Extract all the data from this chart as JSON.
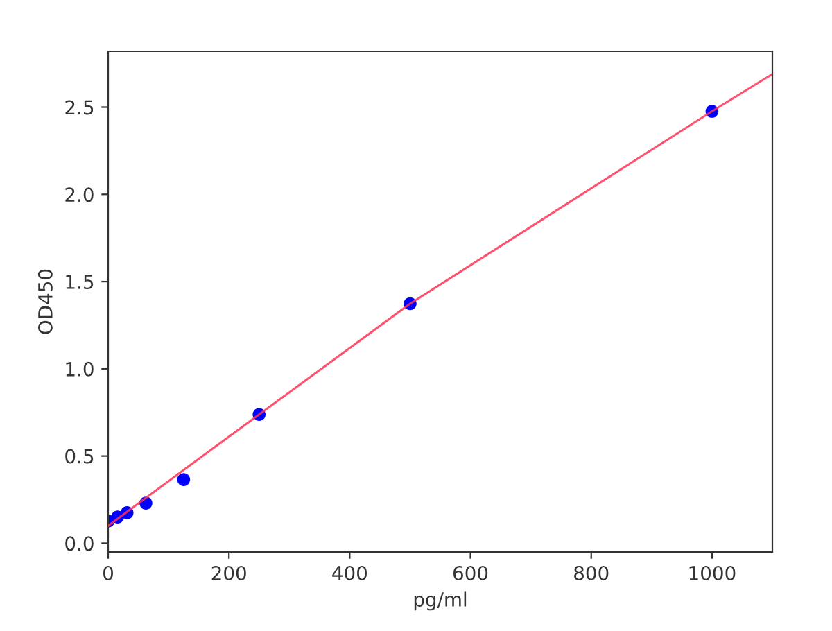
{
  "chart_data": {
    "type": "scatter",
    "xlabel": "pg/ml",
    "ylabel": "OD450",
    "series": [
      {
        "color": "#0000ff",
        "marker": "circle",
        "x": [
          0,
          15.6,
          31.25,
          62.5,
          125,
          250,
          500,
          1000
        ],
        "values": [
          0.127,
          0.15,
          0.175,
          0.23,
          0.365,
          0.738,
          1.373,
          2.476
        ]
      },
      {
        "type": "line",
        "color": "#ff3355",
        "marker": "none",
        "line_style": "solid",
        "x": [
          0,
          125,
          250,
          500,
          1000,
          1100
        ],
        "values": [
          0.1,
          0.42,
          0.738,
          1.373,
          2.476,
          2.69
        ]
      }
    ],
    "xlim": [
      0,
      1100
    ],
    "ylim": [
      -0.05,
      2.82
    ],
    "xticks": [
      0,
      200,
      400,
      600,
      800,
      1000
    ],
    "yticks": [
      {
        "value": 0,
        "label": "0.0"
      },
      {
        "value": 0.5,
        "label": "0.5"
      },
      {
        "value": 1,
        "label": "1.0"
      },
      {
        "value": 1.5,
        "label": "1.5"
      },
      {
        "value": 2,
        "label": "2.0"
      },
      {
        "value": 2.5,
        "label": "2.5"
      }
    ],
    "grid": false
  }
}
